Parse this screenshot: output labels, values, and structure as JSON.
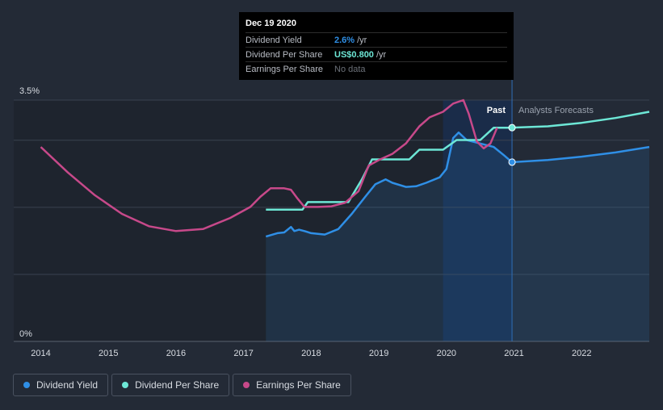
{
  "colors": {
    "background": "#232a36",
    "dividend_yield": "#2f8fe6",
    "dividend_per_share": "#6de7d6",
    "earnings_per_share": "#c7498a",
    "grid": "#3a4250"
  },
  "tooltip": {
    "date": "Dec 19 2020",
    "rows": [
      {
        "label": "Dividend Yield",
        "value": "2.6%",
        "unit": "/yr"
      },
      {
        "label": "Dividend Per Share",
        "value": "US$0.800",
        "unit": "/yr"
      },
      {
        "label": "Earnings Per Share",
        "value": "No data",
        "unit": ""
      }
    ]
  },
  "legend": [
    {
      "label": "Dividend Yield",
      "icon": "dot-icon"
    },
    {
      "label": "Dividend Per Share",
      "icon": "dot-icon"
    },
    {
      "label": "Earnings Per Share",
      "icon": "dot-icon"
    }
  ],
  "chart_data": {
    "type": "line",
    "y_top_label": "3.5%",
    "y_bottom_label": "0%",
    "ylim": [
      0,
      3.5
    ],
    "xlim": [
      2013.6,
      2023.0
    ],
    "x_ticks": [
      "2014",
      "2015",
      "2016",
      "2017",
      "2018",
      "2019",
      "2020",
      "2021",
      "2022"
    ],
    "past_label": "Past",
    "forecast_label": "Analysts Forecasts",
    "forecast_start": 2020.97,
    "highlight_range": [
      2019.95,
      2020.97
    ],
    "series": [
      {
        "name": "Dividend Yield",
        "key": "dividend_yield",
        "area": true,
        "points": [
          [
            2017.33,
            1.52
          ],
          [
            2017.5,
            1.57
          ],
          [
            2017.6,
            1.58
          ],
          [
            2017.7,
            1.66
          ],
          [
            2017.75,
            1.6
          ],
          [
            2017.82,
            1.62
          ],
          [
            2017.9,
            1.6
          ],
          [
            2018.0,
            1.57
          ],
          [
            2018.2,
            1.55
          ],
          [
            2018.4,
            1.63
          ],
          [
            2018.6,
            1.85
          ],
          [
            2018.8,
            2.1
          ],
          [
            2018.95,
            2.28
          ],
          [
            2019.1,
            2.35
          ],
          [
            2019.2,
            2.3
          ],
          [
            2019.4,
            2.24
          ],
          [
            2019.55,
            2.25
          ],
          [
            2019.7,
            2.3
          ],
          [
            2019.9,
            2.38
          ],
          [
            2020.0,
            2.5
          ],
          [
            2020.1,
            2.95
          ],
          [
            2020.18,
            3.03
          ],
          [
            2020.3,
            2.92
          ],
          [
            2020.5,
            2.87
          ],
          [
            2020.7,
            2.82
          ],
          [
            2020.85,
            2.7
          ],
          [
            2020.97,
            2.6
          ],
          [
            2021.5,
            2.63
          ],
          [
            2022.0,
            2.68
          ],
          [
            2022.5,
            2.74
          ],
          [
            2023.0,
            2.82
          ]
        ]
      },
      {
        "name": "Dividend Per Share",
        "key": "dividend_per_share",
        "area": false,
        "points": [
          [
            2017.33,
            1.91
          ],
          [
            2017.87,
            1.91
          ],
          [
            2017.95,
            2.02
          ],
          [
            2018.55,
            2.02
          ],
          [
            2018.75,
            2.35
          ],
          [
            2018.9,
            2.64
          ],
          [
            2019.45,
            2.64
          ],
          [
            2019.6,
            2.78
          ],
          [
            2019.95,
            2.78
          ],
          [
            2020.15,
            2.92
          ],
          [
            2020.5,
            2.92
          ],
          [
            2020.7,
            3.1
          ],
          [
            2020.97,
            3.1
          ],
          [
            2021.5,
            3.12
          ],
          [
            2022.0,
            3.17
          ],
          [
            2022.5,
            3.24
          ],
          [
            2023.0,
            3.33
          ]
        ]
      },
      {
        "name": "Earnings Per Share",
        "key": "earnings_per_share",
        "area": false,
        "points": [
          [
            2014.0,
            2.82
          ],
          [
            2014.4,
            2.45
          ],
          [
            2014.8,
            2.12
          ],
          [
            2015.2,
            1.85
          ],
          [
            2015.6,
            1.67
          ],
          [
            2016.0,
            1.6
          ],
          [
            2016.4,
            1.63
          ],
          [
            2016.8,
            1.79
          ],
          [
            2017.1,
            1.95
          ],
          [
            2017.25,
            2.1
          ],
          [
            2017.4,
            2.22
          ],
          [
            2017.6,
            2.22
          ],
          [
            2017.7,
            2.2
          ],
          [
            2017.8,
            2.07
          ],
          [
            2017.9,
            1.95
          ],
          [
            2018.1,
            1.95
          ],
          [
            2018.3,
            1.96
          ],
          [
            2018.5,
            2.01
          ],
          [
            2018.7,
            2.18
          ],
          [
            2018.85,
            2.55
          ],
          [
            2019.0,
            2.63
          ],
          [
            2019.2,
            2.72
          ],
          [
            2019.4,
            2.87
          ],
          [
            2019.6,
            3.12
          ],
          [
            2019.75,
            3.25
          ],
          [
            2019.95,
            3.33
          ],
          [
            2020.1,
            3.45
          ],
          [
            2020.25,
            3.5
          ],
          [
            2020.33,
            3.3
          ],
          [
            2020.45,
            2.9
          ],
          [
            2020.55,
            2.8
          ],
          [
            2020.65,
            2.87
          ],
          [
            2020.75,
            3.1
          ]
        ]
      }
    ]
  }
}
